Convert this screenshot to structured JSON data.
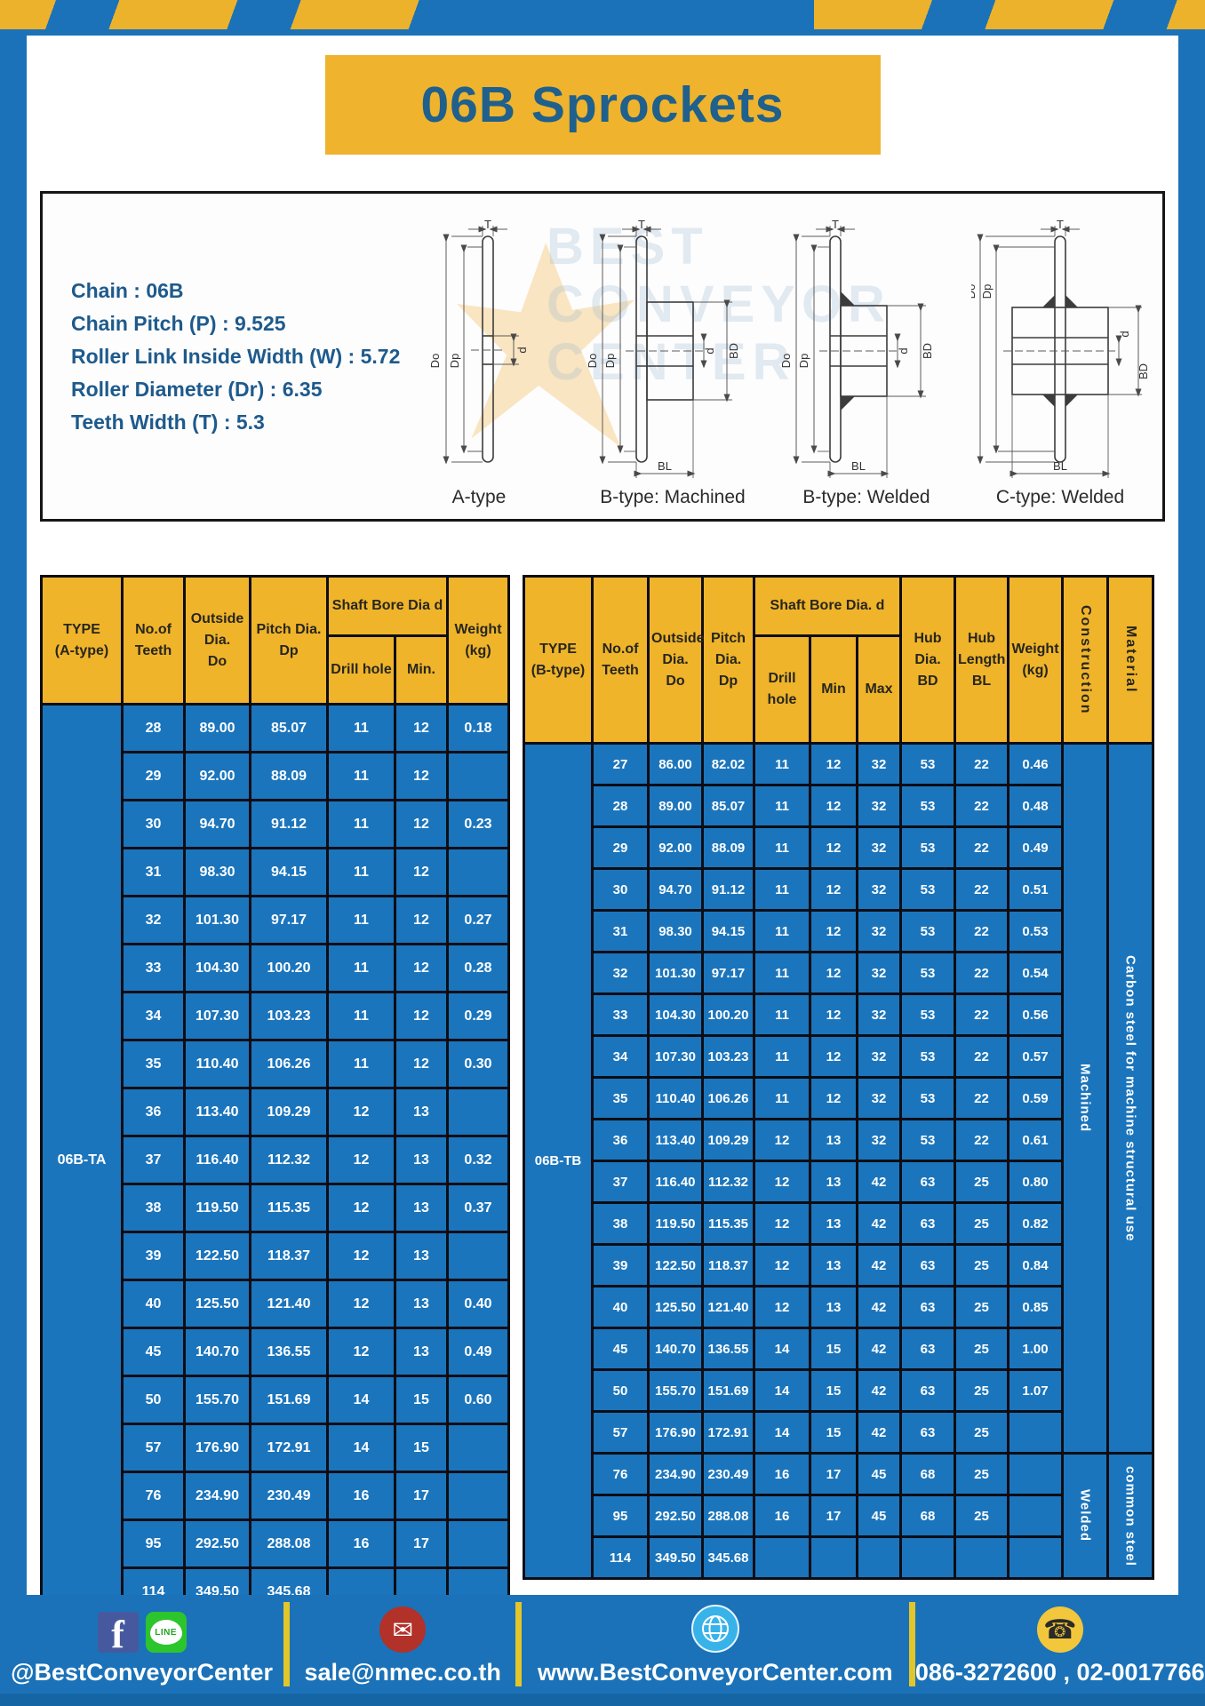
{
  "title": "06B Sprockets",
  "colors": {
    "page_blue": "#1b72b8",
    "stripe_yellow": "#edb22b",
    "banner_yellow": "#efb32d",
    "banner_text": "#1f608c",
    "spec_text_blue": "#1e5a8c",
    "table_header_yellow": "#f0b42a",
    "cell_blue": "#1b75bc",
    "table_border": "#0d0d15",
    "footer_divider": "#e3c62a"
  },
  "specs": {
    "lines": [
      "Chain  :  06B",
      "Chain Pitch (P)  :  9.525",
      "Roller Link Inside Width (W)  :  5.72",
      "Roller Diameter (Dr)  :  6.35",
      "Teeth Width (T)  :  5.3"
    ]
  },
  "diagrams": {
    "watermark": "BEST CONVEYOR CENTER",
    "dims": {
      "T": "T",
      "Do": "Do",
      "Dp": "Dp",
      "d": "d",
      "BD": "BD",
      "BL": "BL"
    },
    "items": [
      {
        "label": "A-type"
      },
      {
        "label": "B-type: Machined"
      },
      {
        "label": "B-type: Welded"
      },
      {
        "label": "C-type: Welded"
      }
    ]
  },
  "table_a": {
    "headers": {
      "type": "TYPE\n(A-type)",
      "teeth": "No.of\nTeeth",
      "outside": "Outside\nDia.\nDo",
      "pitch": "Pitch Dia.\nDp",
      "shaft_bore": "Shaft Bore Dia d",
      "drill": "Drill hole",
      "min": "Min.",
      "weight": "Weight\n(kg)"
    },
    "type_label": "06B-TA",
    "rows": [
      [
        "28",
        "89.00",
        "85.07",
        "11",
        "12",
        "0.18"
      ],
      [
        "29",
        "92.00",
        "88.09",
        "11",
        "12",
        ""
      ],
      [
        "30",
        "94.70",
        "91.12",
        "11",
        "12",
        "0.23"
      ],
      [
        "31",
        "98.30",
        "94.15",
        "11",
        "12",
        ""
      ],
      [
        "32",
        "101.30",
        "97.17",
        "11",
        "12",
        "0.27"
      ],
      [
        "33",
        "104.30",
        "100.20",
        "11",
        "12",
        "0.28"
      ],
      [
        "34",
        "107.30",
        "103.23",
        "11",
        "12",
        "0.29"
      ],
      [
        "35",
        "110.40",
        "106.26",
        "11",
        "12",
        "0.30"
      ],
      [
        "36",
        "113.40",
        "109.29",
        "12",
        "13",
        ""
      ],
      [
        "37",
        "116.40",
        "112.32",
        "12",
        "13",
        "0.32"
      ],
      [
        "38",
        "119.50",
        "115.35",
        "12",
        "13",
        "0.37"
      ],
      [
        "39",
        "122.50",
        "118.37",
        "12",
        "13",
        ""
      ],
      [
        "40",
        "125.50",
        "121.40",
        "12",
        "13",
        "0.40"
      ],
      [
        "45",
        "140.70",
        "136.55",
        "12",
        "13",
        "0.49"
      ],
      [
        "50",
        "155.70",
        "151.69",
        "14",
        "15",
        "0.60"
      ],
      [
        "57",
        "176.90",
        "172.91",
        "14",
        "15",
        ""
      ],
      [
        "76",
        "234.90",
        "230.49",
        "16",
        "17",
        ""
      ],
      [
        "95",
        "292.50",
        "288.08",
        "16",
        "17",
        ""
      ],
      [
        "114",
        "349.50",
        "345.68",
        "",
        "",
        ""
      ]
    ]
  },
  "table_b": {
    "headers": {
      "type": "TYPE\n(B-type)",
      "teeth": "No.of\nTeeth",
      "outside": "Outside\nDia.\nDo",
      "pitch": "Pitch\nDia.\nDp",
      "shaft_bore": "Shaft Bore Dia. d",
      "drill": "Drill hole",
      "min": "Min",
      "max": "Max",
      "hub_dia": "Hub\nDia.\nBD",
      "hub_len": "Hub\nLength\nBL",
      "weight": "Weight\n(kg)",
      "construction": "Construction",
      "material": "Material"
    },
    "type_label": "06B-TB",
    "rows": [
      [
        "27",
        "86.00",
        "82.02",
        "11",
        "12",
        "32",
        "53",
        "22",
        "0.46"
      ],
      [
        "28",
        "89.00",
        "85.07",
        "11",
        "12",
        "32",
        "53",
        "22",
        "0.48"
      ],
      [
        "29",
        "92.00",
        "88.09",
        "11",
        "12",
        "32",
        "53",
        "22",
        "0.49"
      ],
      [
        "30",
        "94.70",
        "91.12",
        "11",
        "12",
        "32",
        "53",
        "22",
        "0.51"
      ],
      [
        "31",
        "98.30",
        "94.15",
        "11",
        "12",
        "32",
        "53",
        "22",
        "0.53"
      ],
      [
        "32",
        "101.30",
        "97.17",
        "11",
        "12",
        "32",
        "53",
        "22",
        "0.54"
      ],
      [
        "33",
        "104.30",
        "100.20",
        "11",
        "12",
        "32",
        "53",
        "22",
        "0.56"
      ],
      [
        "34",
        "107.30",
        "103.23",
        "11",
        "12",
        "32",
        "53",
        "22",
        "0.57"
      ],
      [
        "35",
        "110.40",
        "106.26",
        "11",
        "12",
        "32",
        "53",
        "22",
        "0.59"
      ],
      [
        "36",
        "113.40",
        "109.29",
        "12",
        "13",
        "32",
        "53",
        "22",
        "0.61"
      ],
      [
        "37",
        "116.40",
        "112.32",
        "12",
        "13",
        "42",
        "63",
        "25",
        "0.80"
      ],
      [
        "38",
        "119.50",
        "115.35",
        "12",
        "13",
        "42",
        "63",
        "25",
        "0.82"
      ],
      [
        "39",
        "122.50",
        "118.37",
        "12",
        "13",
        "42",
        "63",
        "25",
        "0.84"
      ],
      [
        "40",
        "125.50",
        "121.40",
        "12",
        "13",
        "42",
        "63",
        "25",
        "0.85"
      ],
      [
        "45",
        "140.70",
        "136.55",
        "14",
        "15",
        "42",
        "63",
        "25",
        "1.00"
      ],
      [
        "50",
        "155.70",
        "151.69",
        "14",
        "15",
        "42",
        "63",
        "25",
        "1.07"
      ],
      [
        "57",
        "176.90",
        "172.91",
        "14",
        "15",
        "42",
        "63",
        "25",
        ""
      ],
      [
        "76",
        "234.90",
        "230.49",
        "16",
        "17",
        "45",
        "68",
        "25",
        ""
      ],
      [
        "95",
        "292.50",
        "288.08",
        "16",
        "17",
        "45",
        "68",
        "25",
        ""
      ],
      [
        "114",
        "349.50",
        "345.68",
        "",
        "",
        "",
        "",
        "",
        ""
      ]
    ],
    "spans": [
      {
        "construction": "Machined",
        "material": "Carbon steel for machine structural use",
        "from": 0,
        "count": 17
      },
      {
        "construction": "Welded",
        "material": "common steel",
        "from": 17,
        "count": 3
      }
    ]
  },
  "footer": {
    "facebook_glyph": "f",
    "line_label": "LINE",
    "mail_glyph": "✉",
    "phone_glyph": "☎",
    "sections": [
      {
        "text": "@BestConveyorCenter"
      },
      {
        "text": "sale@nmec.co.th"
      },
      {
        "text": "www.BestConveyorCenter.com"
      },
      {
        "text": "086-3272600 , 02-0017766"
      }
    ]
  }
}
